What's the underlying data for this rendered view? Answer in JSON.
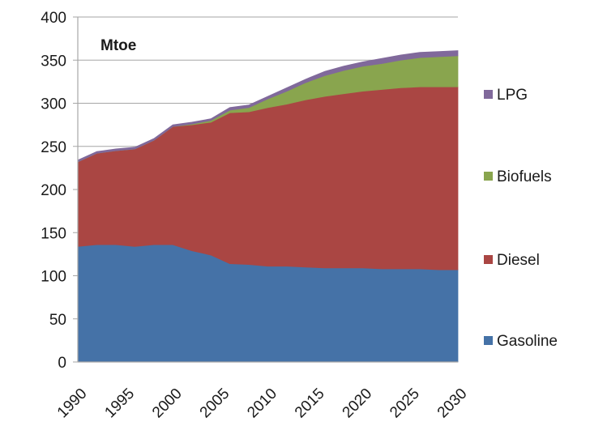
{
  "chart_data": {
    "type": "area",
    "stacked": true,
    "unit_label": "Mtoe",
    "ylim": [
      0,
      400
    ],
    "y_ticks": [
      0,
      50,
      100,
      150,
      200,
      250,
      300,
      350,
      400
    ],
    "xlim": [
      1990,
      2030
    ],
    "x_ticks": [
      1990,
      1995,
      2000,
      2005,
      2010,
      2015,
      2020,
      2025,
      2030
    ],
    "grid": "horizontal",
    "legend_position": "right",
    "x": [
      1990,
      1992,
      1994,
      1996,
      1998,
      2000,
      2002,
      2004,
      2006,
      2008,
      2010,
      2012,
      2014,
      2016,
      2018,
      2020,
      2022,
      2024,
      2026,
      2028,
      2030
    ],
    "series": [
      {
        "name": "Gasoline",
        "color": "#4572a7",
        "values": [
          134,
          136,
          136,
          134,
          136,
          136,
          129,
          124,
          114,
          113,
          111,
          111,
          110,
          109,
          109,
          109,
          108,
          108,
          108,
          107,
          107
        ]
      },
      {
        "name": "Diesel",
        "color": "#aa4643",
        "values": [
          98,
          106,
          109,
          113,
          121,
          137,
          146,
          154,
          175,
          177,
          184,
          188,
          194,
          199,
          202,
          205,
          208,
          210,
          211,
          212,
          212
        ]
      },
      {
        "name": "Biofuels",
        "color": "#89a54e",
        "values": [
          0,
          0,
          0,
          0,
          0,
          0,
          1,
          2,
          3,
          5,
          10,
          15,
          20,
          24,
          27,
          29,
          30,
          32,
          34,
          35,
          36
        ]
      },
      {
        "name": "LPG",
        "color": "#80699b",
        "values": [
          2,
          2,
          2,
          2,
          2,
          2,
          2,
          2,
          3,
          3,
          3,
          4,
          4,
          5,
          5,
          5,
          6,
          6,
          6,
          6,
          6
        ]
      }
    ]
  }
}
